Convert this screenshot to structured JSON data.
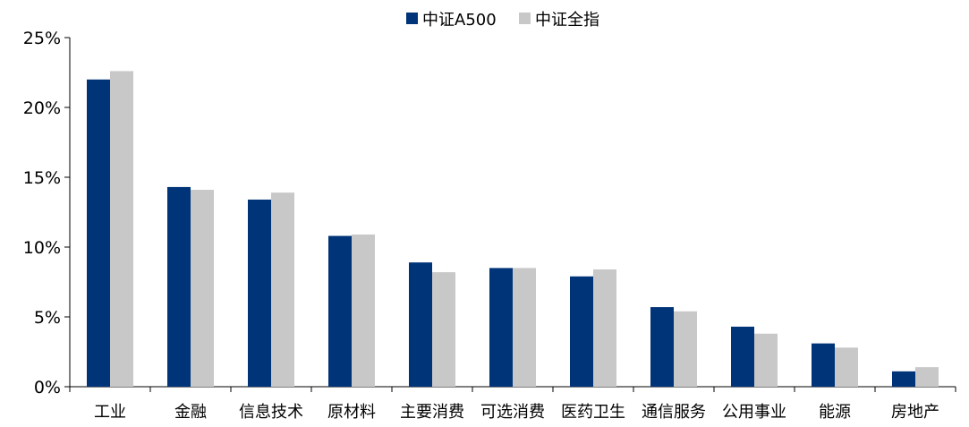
{
  "chart_data": {
    "type": "bar",
    "categories": [
      "工业",
      "金融",
      "信息技术",
      "原材料",
      "主要消费",
      "可选消费",
      "医药卫生",
      "通信服务",
      "公用事业",
      "能源",
      "房地产"
    ],
    "series": [
      {
        "name": "中证A500",
        "color": "#003478",
        "values": [
          22.0,
          14.3,
          13.4,
          10.8,
          8.9,
          8.5,
          7.9,
          5.7,
          4.3,
          3.1,
          1.1
        ]
      },
      {
        "name": "中证全指",
        "color": "#c8c8c8",
        "values": [
          22.6,
          14.1,
          13.9,
          10.9,
          8.2,
          8.5,
          8.4,
          5.4,
          3.8,
          2.8,
          1.4
        ]
      }
    ],
    "ylim": [
      0,
      25
    ],
    "yticks": [
      "0%",
      "5%",
      "10%",
      "15%",
      "20%",
      "25%"
    ],
    "ytick_values": [
      0,
      5,
      10,
      15,
      20,
      25
    ],
    "legend_position": "top-center",
    "grid": false
  }
}
